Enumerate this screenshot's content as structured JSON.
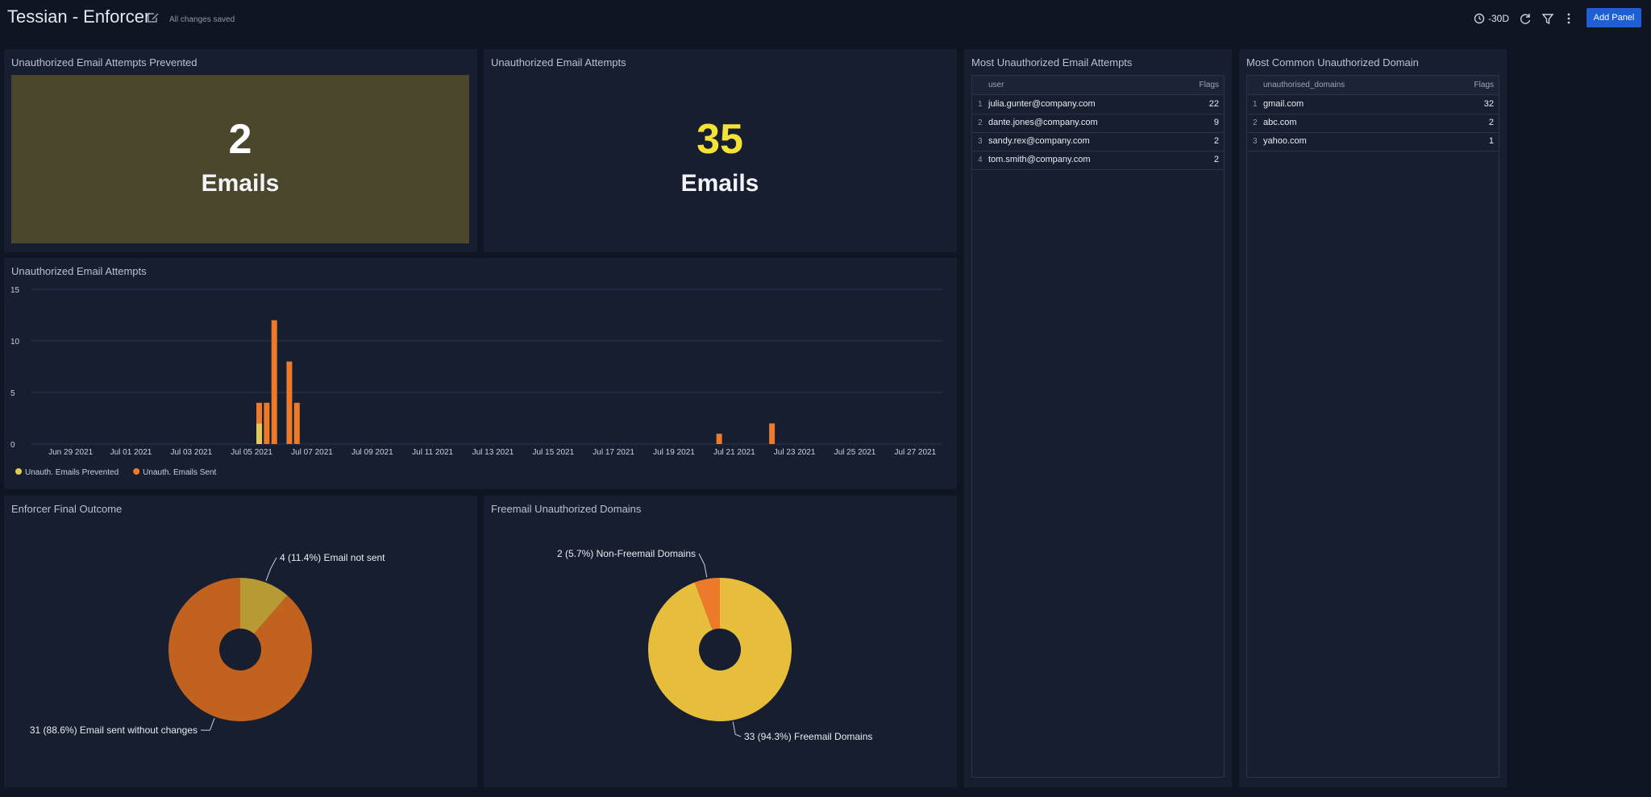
{
  "header": {
    "title": "Tessian - Enforcer",
    "status": "All changes saved",
    "time_range": "-30D",
    "button": "Add Panel"
  },
  "stats": [
    {
      "title": "Unauthorized Email Attempts Prevented",
      "value": 2,
      "unit": "Emails",
      "color": "#ffffff",
      "background": "#4a472d"
    },
    {
      "title": "Unauthorized Email Attempts",
      "value": 35,
      "unit": "Emails",
      "color": "#f5e236",
      "background": "#161e2f"
    }
  ],
  "tables": [
    {
      "title": "Most Unauthorized Email Attempts",
      "columns": [
        "user",
        "Flags"
      ],
      "rows": [
        [
          1,
          "julia.gunter@company.com",
          22
        ],
        [
          2,
          "dante.jones@company.com",
          9
        ],
        [
          3,
          "sandy.rex@company.com",
          2
        ],
        [
          4,
          "tom.smith@company.com",
          2
        ]
      ]
    },
    {
      "title": "Most Common Unauthorized Domain",
      "columns": [
        "unauthorised_domains",
        "Flags"
      ],
      "rows": [
        [
          1,
          "gmail.com",
          32
        ],
        [
          2,
          "abc.com",
          2
        ],
        [
          3,
          "yahoo.com",
          1
        ]
      ]
    }
  ],
  "chart_data": [
    {
      "type": "bar",
      "title": "Unauthorized Email Attempts",
      "stacked": true,
      "grid": true,
      "x": [
        186.25,
        186.5,
        186.75,
        187.25,
        187.5,
        201.5,
        203.25
      ],
      "series": [
        {
          "name": "Unauth. Emails Prevented",
          "color": "#e3c85a",
          "values": [
            2,
            0,
            0,
            0,
            0,
            0,
            0
          ]
        },
        {
          "name": "Unauth. Emails Sent",
          "color": "#ec7a2a",
          "values": [
            2,
            4,
            12,
            8,
            4,
            1,
            2
          ]
        }
      ],
      "xlim": [
        178.7,
        208.9
      ],
      "xticks": [
        {
          "value": 180,
          "label": "Jun 29 2021"
        },
        {
          "value": 182,
          "label": "Jul 01 2021"
        },
        {
          "value": 184,
          "label": "Jul 03 2021"
        },
        {
          "value": 186,
          "label": "Jul 05 2021"
        },
        {
          "value": 188,
          "label": "Jul 07 2021"
        },
        {
          "value": 190,
          "label": "Jul 09 2021"
        },
        {
          "value": 192,
          "label": "Jul 11 2021"
        },
        {
          "value": 194,
          "label": "Jul 13 2021"
        },
        {
          "value": 196,
          "label": "Jul 15 2021"
        },
        {
          "value": 198,
          "label": "Jul 17 2021"
        },
        {
          "value": 200,
          "label": "Jul 19 2021"
        },
        {
          "value": 202,
          "label": "Jul 21 2021"
        },
        {
          "value": 204,
          "label": "Jul 23 2021"
        },
        {
          "value": 206,
          "label": "Jul 25 2021"
        },
        {
          "value": 208,
          "label": "Jul 27 2021"
        }
      ],
      "ylim": [
        0,
        15
      ],
      "yticks": [
        0,
        5,
        10,
        15
      ]
    },
    {
      "type": "pie",
      "title": "Enforcer Final Outcome",
      "categories": [
        "Email not sent",
        "Email sent without changes"
      ],
      "values": [
        4,
        31
      ],
      "value_labels": [
        "4 (11.4%) Email not sent",
        "31 (88.6%) Email sent without changes"
      ],
      "colors": [
        "#b89a35",
        "#c2621f"
      ]
    },
    {
      "type": "pie",
      "title": "Freemail Unauthorized Domains",
      "categories": [
        "Freemail Domains",
        "Non-Freemail Domains"
      ],
      "values": [
        33,
        2
      ],
      "value_labels": [
        "33 (94.3%) Freemail Domains",
        "2 (5.7%) Non-Freemail Domains"
      ],
      "colors": [
        "#e6be3c",
        "#ec7a2a"
      ]
    }
  ]
}
